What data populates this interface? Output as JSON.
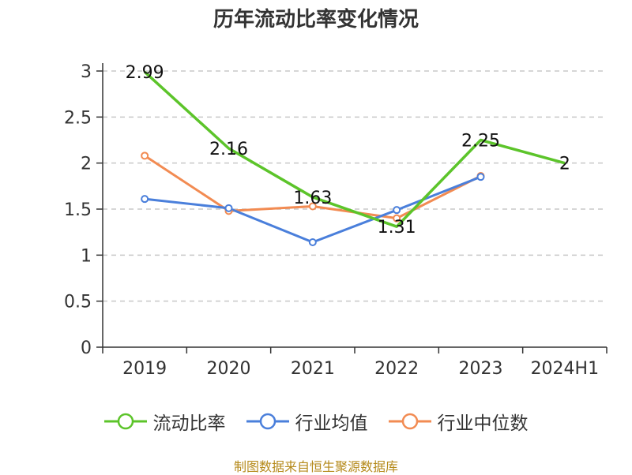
{
  "chart_data": {
    "type": "line",
    "title": "历年流动比率变化情况",
    "categories": [
      "2019",
      "2020",
      "2021",
      "2022",
      "2023",
      "2024H1"
    ],
    "ylim": [
      0,
      3
    ],
    "yticks": [
      0,
      0.5,
      1,
      1.5,
      2,
      2.5,
      3
    ],
    "ytick_labels": [
      "0",
      "0.5",
      "1",
      "1.5",
      "2",
      "2.5",
      "3"
    ],
    "grid": "horizontal dashed",
    "legend_position": "bottom",
    "series": [
      {
        "name": "流动比率",
        "color": "#5cc42a",
        "values": [
          2.99,
          2.16,
          1.63,
          1.31,
          2.25,
          2
        ],
        "data_labels": [
          "2.99",
          "2.16",
          "1.63",
          "1.31",
          "2.25",
          "2"
        ],
        "show_markers": false
      },
      {
        "name": "行业均值",
        "color": "#4a7fdb",
        "values": [
          1.61,
          1.51,
          1.14,
          1.49,
          1.85,
          null
        ],
        "show_markers": true
      },
      {
        "name": "行业中位数",
        "color": "#f28b52",
        "values": [
          2.08,
          1.48,
          1.53,
          1.4,
          1.86,
          null
        ],
        "show_markers": true
      }
    ]
  },
  "source": "制图数据来自恒生聚源数据库"
}
